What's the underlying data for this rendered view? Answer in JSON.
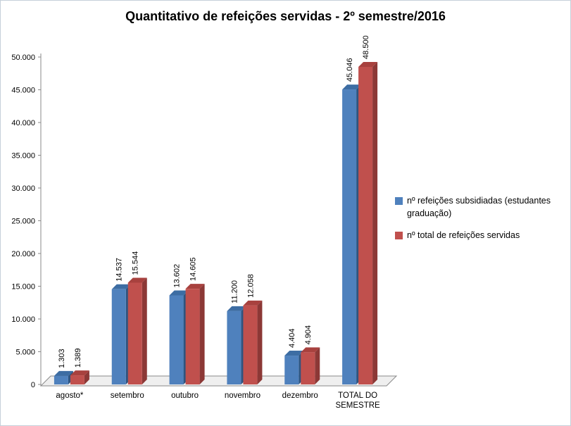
{
  "title": "Quantitativo de refeições servidas - 2º semestre/2016",
  "chart_data": {
    "type": "bar",
    "style": "3d-clustered-column",
    "title": "Quantitativo de refeições servidas - 2º semestre/2016",
    "categories": [
      "agosto*",
      "setembro",
      "outubro",
      "novembro",
      "dezembro",
      "TOTAL DO SEMESTRE"
    ],
    "series": [
      {
        "name": "nº refeições subsidiadas (estudantes graduação)",
        "color": "#4F81BD",
        "top_color": "#3D6DA3",
        "side_color": "#2E5480",
        "values": [
          1303,
          14537,
          13602,
          11200,
          4404,
          45046
        ],
        "labels": [
          "1.303",
          "14.537",
          "13.602",
          "11.200",
          "4.404",
          "45.046"
        ]
      },
      {
        "name": "nº total de refeições servidas",
        "color": "#C0504D",
        "top_color": "#A8413E",
        "side_color": "#8C3836",
        "values": [
          1389,
          15544,
          14605,
          12058,
          4904,
          48500
        ],
        "labels": [
          "1.389",
          "15.544",
          "14.605",
          "12.058",
          "4.904",
          "48.500"
        ]
      }
    ],
    "y_ticks": [
      "0",
      "5.000",
      "10.000",
      "15.000",
      "20.000",
      "25.000",
      "30.000",
      "35.000",
      "40.000",
      "45.000",
      "50.000"
    ],
    "ylim": [
      0,
      50000
    ],
    "grid": false,
    "legend_position": "right",
    "floor_color": "#EFEFEF",
    "axis_color": "#8a8a8a"
  }
}
